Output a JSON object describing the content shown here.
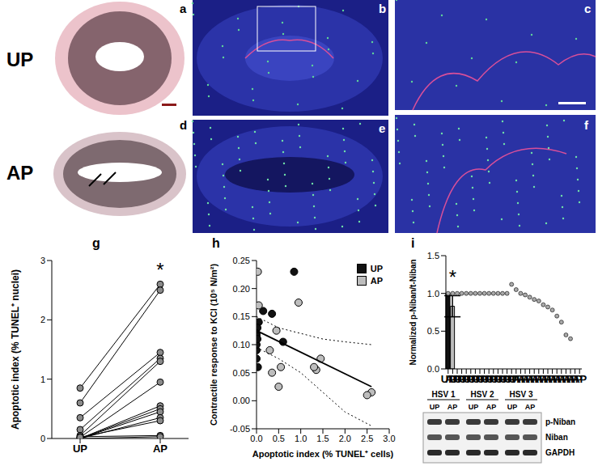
{
  "rows": [
    "UP",
    "AP"
  ],
  "panels": [
    "a",
    "b",
    "c",
    "d",
    "e",
    "f"
  ],
  "chart_data": [
    {
      "panel": "g",
      "type": "line",
      "categories": [
        "UP",
        "AP"
      ],
      "y_label": "Apoptotic index (% TUNEL⁺ nuclei)",
      "ylim": [
        0,
        3
      ],
      "yticks": [
        0,
        1,
        2,
        3
      ],
      "color": "#8a8a8a",
      "marker": "circle",
      "series": [
        {
          "values": [
            0.85,
            2.6
          ]
        },
        {
          "values": [
            0.6,
            2.5
          ]
        },
        {
          "values": [
            0.35,
            1.45
          ]
        },
        {
          "values": [
            0.15,
            1.35
          ]
        },
        {
          "values": [
            0.05,
            1.3
          ]
        },
        {
          "values": [
            0.02,
            0.95
          ]
        },
        {
          "values": [
            0,
            0.55
          ]
        },
        {
          "values": [
            0,
            0.5
          ]
        },
        {
          "values": [
            0,
            0.45
          ]
        },
        {
          "values": [
            0,
            0.35
          ]
        },
        {
          "values": [
            0.03,
            0.05
          ]
        },
        {
          "values": [
            0,
            0.03
          ]
        },
        {
          "values": [
            0.02,
            0.3
          ]
        }
      ],
      "annotations": [
        {
          "text": "*",
          "x": "AP",
          "y": 2.85
        }
      ]
    },
    {
      "panel": "h",
      "type": "scatter",
      "x_label": "Apoptotic index (% TUNEL⁺ cells)",
      "y_label": "Contractile response to KCl (10⁵ N/m²)",
      "xlim": [
        0,
        3
      ],
      "xticks": [
        {
          "value": 0,
          "label": "0.0"
        },
        {
          "value": 0.5,
          "label": "0.5"
        },
        {
          "value": 1,
          "label": "1.0"
        },
        {
          "value": 1.5,
          "label": "1.5"
        },
        {
          "value": 2,
          "label": "2.0"
        },
        {
          "value": 2.5,
          "label": "2.5"
        },
        {
          "value": 3,
          "label": "3.0"
        }
      ],
      "ylim": [
        -0.05,
        0.25
      ],
      "yticks": [
        {
          "value": -0.05,
          "label": "-0.05"
        },
        {
          "value": 0,
          "label": "0.00"
        },
        {
          "value": 0.05,
          "label": "0.05"
        },
        {
          "value": 0.1,
          "label": "0.10"
        },
        {
          "value": 0.15,
          "label": "0.15"
        },
        {
          "value": 0.2,
          "label": "0.20"
        },
        {
          "value": 0.25,
          "label": "0.25"
        }
      ],
      "legend": "top-right",
      "series": [
        {
          "name": "UP",
          "color": "#111111",
          "marker": "circle",
          "x": [
            0.85,
            0.6,
            0.35,
            0.15,
            0.05,
            0.02,
            0,
            0,
            0,
            0,
            0.03,
            0,
            0.02
          ],
          "values": [
            0.23,
            0.105,
            0.155,
            0.16,
            0.14,
            0.13,
            0.12,
            0.115,
            0.09,
            0.075,
            0.06,
            0.1,
            0.11
          ]
        },
        {
          "name": "AP",
          "color": "#bdbdbd",
          "marker": "circle",
          "x": [
            2.6,
            2.5,
            1.45,
            1.35,
            1.3,
            0.95,
            0.55,
            0.5,
            0.45,
            0.35,
            0.05,
            0.03,
            0.3
          ],
          "values": [
            0.015,
            0.01,
            0.075,
            0.055,
            0.06,
            0.175,
            0.06,
            0.025,
            0.125,
            0.05,
            0.17,
            0.23,
            0.09
          ]
        },
        {
          "type": "line",
          "line_style": "solid",
          "color": "#000000",
          "x": [
            0,
            2.6
          ],
          "values": [
            0.125,
            0.025
          ]
        },
        {
          "type": "line",
          "line_style": "dotted",
          "color": "#000000",
          "x": [
            0,
            0.5,
            1,
            1.5,
            2,
            2.6
          ],
          "values": [
            0.15,
            0.13,
            0.12,
            0.11,
            0.105,
            0.1
          ]
        },
        {
          "type": "line",
          "line_style": "dotted",
          "color": "#000000",
          "x": [
            0,
            0.5,
            1,
            1.5,
            2,
            2.6
          ],
          "values": [
            0.095,
            0.075,
            0.05,
            0.015,
            -0.02,
            -0.045
          ]
        }
      ]
    },
    {
      "panel": "i",
      "type": "bar",
      "categories": [
        "UP",
        "AP"
      ],
      "values": [
        1,
        0.83
      ],
      "colors": [
        "#111111",
        "#bdbdbd"
      ],
      "error": [
        0,
        0.14
      ],
      "points": [
        [
          1,
          1,
          1,
          1,
          1,
          1,
          1,
          1,
          1,
          1,
          1,
          1,
          1,
          1
        ],
        [
          1.12,
          1.05,
          1,
          0.98,
          0.95,
          0.92,
          0.9,
          0.85,
          0.82,
          0.78,
          0.7,
          0.62,
          0.45,
          0.4
        ]
      ],
      "y_label": "Normalized p-Niban/t-Niban",
      "ylim": [
        0,
        1.5
      ],
      "yticks": [
        {
          "value": 0,
          "label": "0.0"
        },
        {
          "value": 0.5,
          "label": "0.5"
        },
        {
          "value": 1,
          "label": "1.0"
        },
        {
          "value": 1.5,
          "label": "1.5"
        }
      ],
      "annotations": [
        {
          "text": "*",
          "x": "AP",
          "y": 1.22
        }
      ]
    }
  ],
  "blot": {
    "groups": [
      "HSV 1",
      "HSV 2",
      "HSV 3"
    ],
    "lanes": [
      "UP",
      "AP"
    ],
    "bands": [
      "p-Niban",
      "Niban",
      "GAPDH"
    ]
  }
}
